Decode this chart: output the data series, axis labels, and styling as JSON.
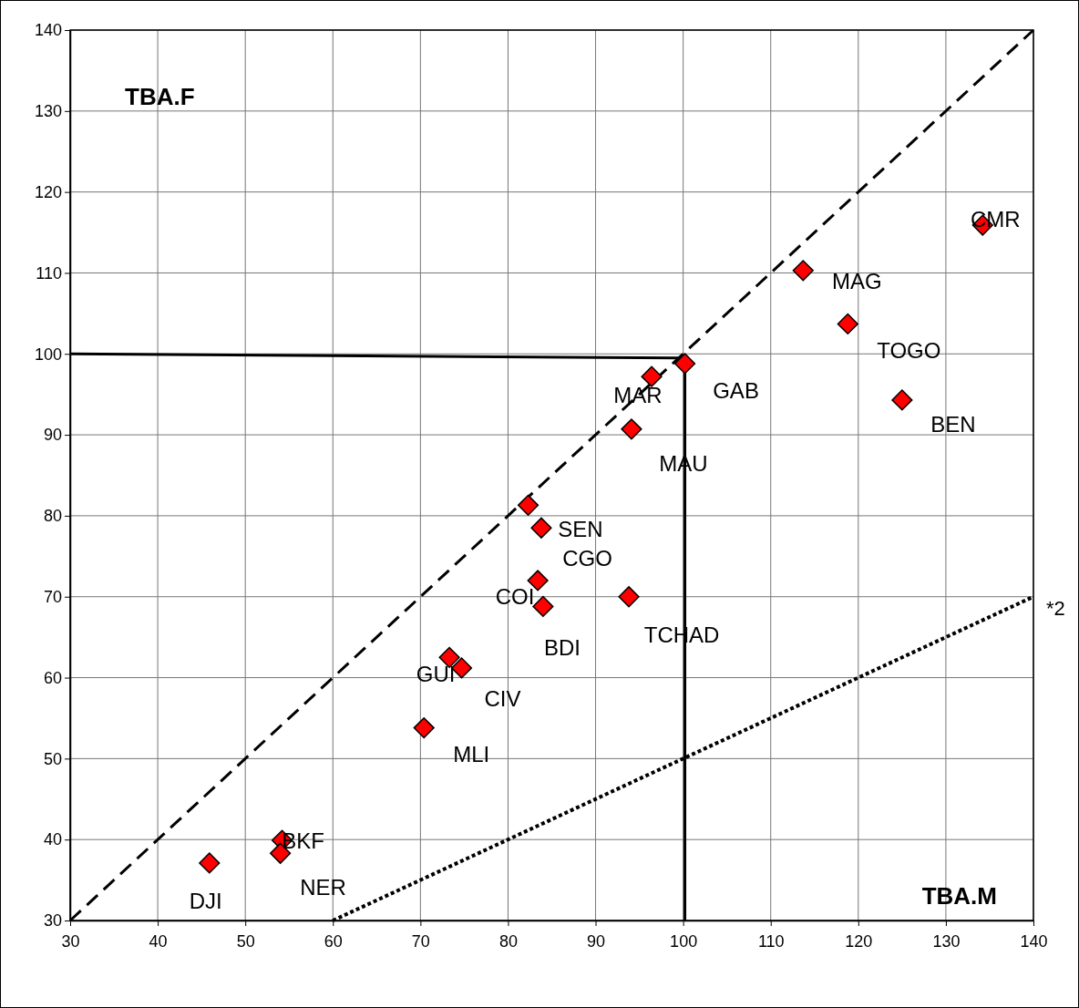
{
  "chart_data": {
    "type": "scatter",
    "xlabel": "TBA.M",
    "ylabel": "TBA.F",
    "xlim": [
      30,
      140
    ],
    "ylim": [
      30,
      140
    ],
    "xticks": [
      30,
      40,
      50,
      60,
      70,
      80,
      90,
      100,
      110,
      120,
      130,
      140
    ],
    "yticks": [
      30,
      40,
      50,
      60,
      70,
      80,
      90,
      100,
      110,
      120,
      130,
      140
    ],
    "grid": true,
    "series": [
      {
        "type": "line",
        "line_style": "dashed",
        "marker": "none",
        "color": "#000000",
        "x": [
          30,
          140
        ],
        "values": [
          30,
          140
        ]
      },
      {
        "type": "line",
        "line_style": "dotted",
        "marker": "none",
        "color": "#000000",
        "x": [
          60,
          140
        ],
        "values": [
          30,
          70
        ]
      },
      {
        "type": "line",
        "line_style": "solid",
        "marker": "none",
        "color": "#000000",
        "x": [
          30,
          99,
          100.2,
          100.2
        ],
        "values": [
          100,
          99.5,
          99.5,
          30
        ]
      },
      {
        "marker": "diamond",
        "color": "#ff0000",
        "x": [
          134.2,
          113.7,
          118.8,
          125.0,
          100.2,
          96.4,
          94.1,
          82.3,
          83.8,
          83.4,
          84.0,
          93.8,
          73.3,
          74.7,
          70.4,
          45.9,
          54.2,
          54.0
        ],
        "values": [
          115.9,
          110.3,
          103.7,
          94.3,
          98.8,
          97.2,
          90.7,
          81.3,
          78.5,
          72.0,
          68.8,
          70.0,
          62.5,
          61.2,
          53.8,
          37.1,
          39.9,
          38.3
        ]
      }
    ],
    "annotations": [
      {
        "text": "CMR",
        "x": 134.2,
        "y": 115.9
      },
      {
        "text": "MAG",
        "x": 113.7,
        "y": 110.3
      },
      {
        "text": "TOGO",
        "x": 118.8,
        "y": 103.7
      },
      {
        "text": "BEN",
        "x": 125.0,
        "y": 94.3
      },
      {
        "text": "GAB",
        "x": 100.2,
        "y": 98.8
      },
      {
        "text": "MAR",
        "x": 96.4,
        "y": 97.2
      },
      {
        "text": "MAU",
        "x": 94.1,
        "y": 90.7
      },
      {
        "text": "SEN",
        "x": 83.8,
        "y": 78.5
      },
      {
        "text": "CGO",
        "x": 82.3,
        "y": 81.3
      },
      {
        "text": "COI",
        "x": 83.4,
        "y": 72.0
      },
      {
        "text": "BDI",
        "x": 84.0,
        "y": 68.8
      },
      {
        "text": "TCHAD",
        "x": 93.8,
        "y": 70.0
      },
      {
        "text": "GUI",
        "x": 73.3,
        "y": 62.5
      },
      {
        "text": "CIV",
        "x": 74.7,
        "y": 61.2
      },
      {
        "text": "MLI",
        "x": 70.4,
        "y": 53.8
      },
      {
        "text": "BKF",
        "x": 54.2,
        "y": 39.9
      },
      {
        "text": "NER",
        "x": 54.0,
        "y": 38.3
      },
      {
        "text": "DJI",
        "x": 45.9,
        "y": 37.1
      },
      {
        "text": "*2",
        "x": 140,
        "y": 70
      }
    ]
  }
}
